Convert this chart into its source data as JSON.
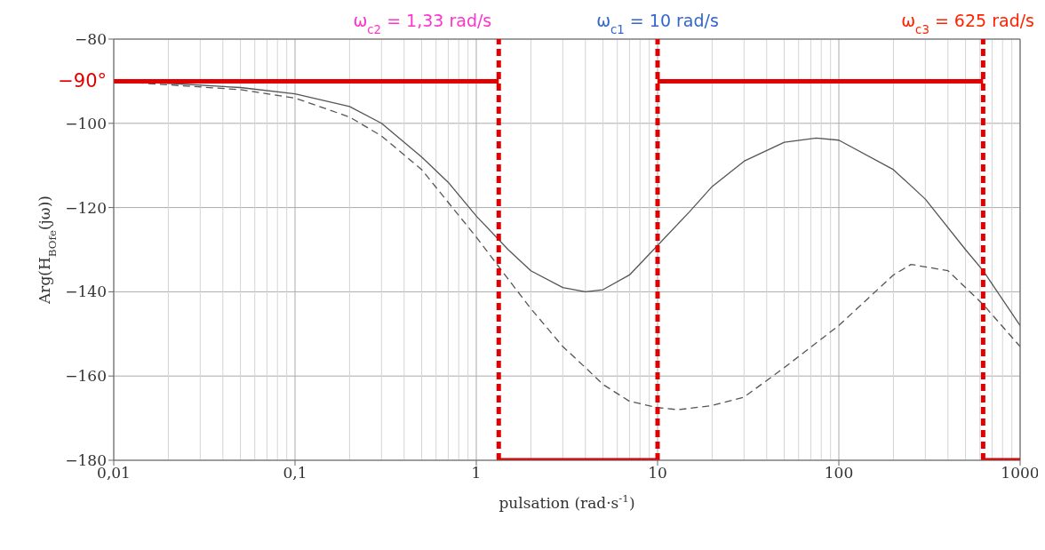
{
  "chart_data": {
    "type": "line",
    "xlabel": "pulsation (rad·s$^{-1}$)",
    "ylabel": "Arg(H$_{BOfe}$(jω))",
    "log": "x",
    "grid": true,
    "marker": "none",
    "xlim": [
      0.01,
      1000
    ],
    "xticks": [
      {
        "value": 0.01,
        "label": "0,01"
      },
      {
        "value": 0.1,
        "label": "0,1"
      },
      1,
      10,
      100,
      1000
    ],
    "ylim": [
      -180,
      -80
    ],
    "yticks": [
      {
        "value": -180,
        "label": "−180"
      },
      {
        "value": -160,
        "label": "−160"
      },
      {
        "value": -140,
        "label": "−140"
      },
      {
        "value": -120,
        "label": "−120"
      },
      {
        "value": -100,
        "label": "−100"
      },
      {
        "value": -80,
        "label": "−80"
      }
    ],
    "series": [
      {
        "color": "#555555",
        "line_style": "solid",
        "x": [
          0.01,
          0.02,
          0.05,
          0.1,
          0.2,
          0.3,
          0.5,
          0.7,
          1,
          1.5,
          2,
          3,
          4,
          5,
          7,
          10,
          15,
          20,
          30,
          50,
          75,
          100,
          200,
          300,
          500,
          625,
          1000
        ],
        "values": [
          -90,
          -90.5,
          -91.5,
          -93,
          -96,
          -100,
          -108,
          -114,
          -122,
          -130,
          -135,
          -139,
          -140,
          -139.5,
          -136,
          -129,
          -121,
          -115,
          -109,
          -104.5,
          -103.5,
          -104,
          -111,
          -118,
          -130,
          -135,
          -148
        ]
      },
      {
        "color": "#555555",
        "line_style": "dashed",
        "x": [
          0.01,
          0.05,
          0.1,
          0.2,
          0.3,
          0.5,
          1,
          1.5,
          2,
          3,
          4,
          5,
          7,
          10,
          13,
          20,
          30,
          50,
          100,
          200,
          250,
          400,
          625,
          1000
        ],
        "values": [
          -90,
          -92,
          -94,
          -98.5,
          -103,
          -111,
          -127,
          -137,
          -144,
          -153,
          -158,
          -162,
          -166,
          -167.5,
          -168,
          -167,
          -165,
          -158,
          -148,
          -136,
          -133.5,
          -135,
          -143,
          -153
        ]
      },
      {
        "color": "#e00000",
        "line_style": "solid",
        "x": [
          0.01,
          1.33
        ],
        "values": [
          -90,
          -90
        ]
      },
      {
        "color": "#e00000",
        "line_style": "solid",
        "x": [
          1.33,
          10
        ],
        "values": [
          -180,
          -180
        ]
      },
      {
        "color": "#e00000",
        "line_style": "solid",
        "x": [
          10,
          625
        ],
        "values": [
          -90,
          -90
        ]
      },
      {
        "color": "#e00000",
        "line_style": "solid",
        "x": [
          625,
          1000
        ],
        "values": [
          -180,
          -180
        ]
      }
    ],
    "ref_lines": [
      {
        "axis": "x",
        "value": 1.33,
        "label": "ω$_{c2}$ = 1,33 rad/s",
        "color": "#e00000",
        "line_style": "dashed"
      },
      {
        "axis": "x",
        "value": 10,
        "label": "ω$_{c1}$ = 10 rad/s",
        "color": "#e00000",
        "line_style": "dashed"
      },
      {
        "axis": "x",
        "value": 625,
        "label": "ω$_{c3}$ = 625 rad/s",
        "color": "#e00000",
        "line_style": "dashed"
      }
    ],
    "annotations": [
      {
        "text": "−90°",
        "x": 0.01,
        "y": -90
      }
    ]
  }
}
